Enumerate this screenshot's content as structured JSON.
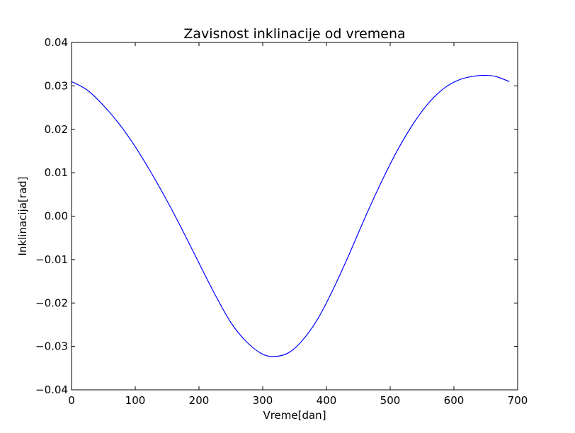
{
  "chart_data": {
    "type": "line",
    "title": "Zavisnost inklinacije od vremena",
    "xlabel": "Vreme[dan]",
    "ylabel": "Inklinacija[rad]",
    "xlim": [
      0,
      700
    ],
    "ylim": [
      -0.04,
      0.04
    ],
    "xticks": [
      0,
      100,
      200,
      300,
      400,
      500,
      600,
      700
    ],
    "yticks": [
      -0.04,
      -0.03,
      -0.02,
      -0.01,
      0.0,
      0.01,
      0.02,
      0.03,
      0.04
    ],
    "xtick_labels": [
      "0",
      "100",
      "200",
      "300",
      "400",
      "500",
      "600",
      "700"
    ],
    "ytick_labels": [
      "−0.04",
      "−0.03",
      "−0.02",
      "−0.01",
      "0.00",
      "0.01",
      "0.02",
      "0.03",
      "0.04"
    ],
    "grid": false,
    "line_color": "#0000ff",
    "series": [
      {
        "x": [
          0,
          25,
          50,
          75,
          100,
          125,
          150,
          175,
          200,
          225,
          250,
          275,
          300,
          320,
          340,
          360,
          385,
          410,
          435,
          460,
          485,
          510,
          535,
          560,
          585,
          610,
          635,
          650,
          665,
          687
        ],
        "y": [
          0.031,
          0.029,
          0.0255,
          0.0212,
          0.016,
          0.01,
          0.0035,
          -0.0035,
          -0.0108,
          -0.018,
          -0.0245,
          -0.029,
          -0.0318,
          -0.0323,
          -0.0315,
          -0.029,
          -0.024,
          -0.017,
          -0.009,
          -0.0005,
          0.0075,
          0.0148,
          0.021,
          0.026,
          0.0295,
          0.0315,
          0.0323,
          0.0324,
          0.0322,
          0.031
        ]
      }
    ]
  }
}
